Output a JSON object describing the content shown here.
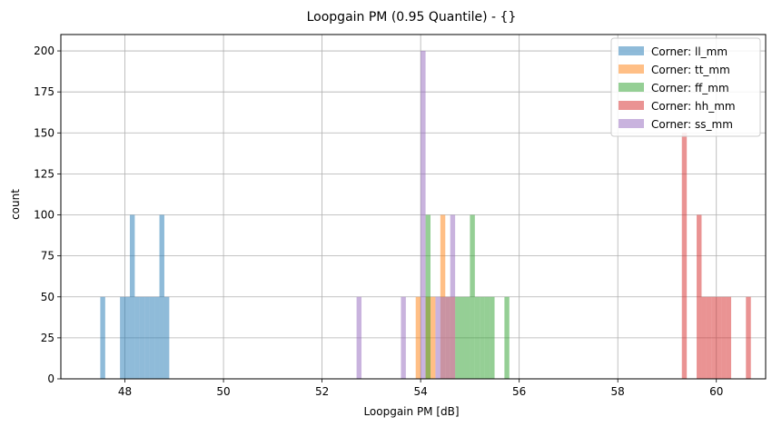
{
  "chart_data": {
    "type": "histogram",
    "title": "Loopgain PM (0.95 Quantile) - {}",
    "xlabel": "Loopgain PM [dB]",
    "ylabel": "count",
    "xlim": [
      46.7,
      61.0
    ],
    "ylim": [
      0,
      210
    ],
    "xticks": [
      48,
      50,
      52,
      54,
      56,
      58,
      60
    ],
    "yticks": [
      0,
      25,
      50,
      75,
      100,
      125,
      150,
      175,
      200
    ],
    "grid": true,
    "legend_position": "top-right",
    "bin_width": 0.1,
    "series": [
      {
        "name": "Corner: ll_mm",
        "color": "#1f77b4",
        "bars": [
          {
            "x": 47.5,
            "count": 50
          },
          {
            "x": 47.9,
            "count": 50
          },
          {
            "x": 48.0,
            "count": 50
          },
          {
            "x": 48.1,
            "count": 100
          },
          {
            "x": 48.2,
            "count": 50
          },
          {
            "x": 48.3,
            "count": 50
          },
          {
            "x": 48.4,
            "count": 50
          },
          {
            "x": 48.5,
            "count": 50
          },
          {
            "x": 48.6,
            "count": 50
          },
          {
            "x": 48.7,
            "count": 100
          },
          {
            "x": 48.8,
            "count": 50
          }
        ]
      },
      {
        "name": "Corner: tt_mm",
        "color": "#ff7f0e",
        "bars": [
          {
            "x": 53.9,
            "count": 50
          },
          {
            "x": 54.1,
            "count": 50
          },
          {
            "x": 54.2,
            "count": 50
          },
          {
            "x": 54.4,
            "count": 100
          },
          {
            "x": 54.5,
            "count": 50
          },
          {
            "x": 54.6,
            "count": 50
          }
        ]
      },
      {
        "name": "Corner: ff_mm",
        "color": "#2ca02c",
        "bars": [
          {
            "x": 54.1,
            "count": 100
          },
          {
            "x": 54.7,
            "count": 50
          },
          {
            "x": 54.8,
            "count": 50
          },
          {
            "x": 54.9,
            "count": 50
          },
          {
            "x": 55.0,
            "count": 100
          },
          {
            "x": 55.1,
            "count": 50
          },
          {
            "x": 55.2,
            "count": 50
          },
          {
            "x": 55.3,
            "count": 50
          },
          {
            "x": 55.4,
            "count": 50
          },
          {
            "x": 55.7,
            "count": 50
          }
        ]
      },
      {
        "name": "Corner: hh_mm",
        "color": "#d62728",
        "bars": [
          {
            "x": 59.3,
            "count": 150
          },
          {
            "x": 59.6,
            "count": 100
          },
          {
            "x": 59.7,
            "count": 50
          },
          {
            "x": 59.8,
            "count": 50
          },
          {
            "x": 59.9,
            "count": 50
          },
          {
            "x": 60.0,
            "count": 50
          },
          {
            "x": 60.1,
            "count": 50
          },
          {
            "x": 60.2,
            "count": 50
          },
          {
            "x": 60.6,
            "count": 50
          }
        ]
      },
      {
        "name": "Corner: ss_mm",
        "color": "#9467bd",
        "bars": [
          {
            "x": 52.7,
            "count": 50
          },
          {
            "x": 53.6,
            "count": 50
          },
          {
            "x": 54.0,
            "count": 200
          },
          {
            "x": 54.3,
            "count": 50
          },
          {
            "x": 54.4,
            "count": 50
          },
          {
            "x": 54.5,
            "count": 50
          },
          {
            "x": 54.6,
            "count": 100
          }
        ]
      }
    ]
  }
}
